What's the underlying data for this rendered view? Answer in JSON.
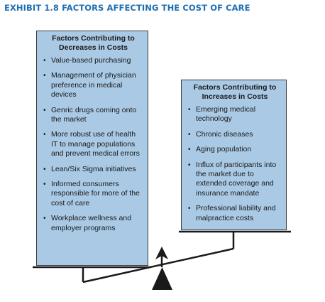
{
  "exhibit": {
    "title": "EXHIBIT 1.8  FACTORS AFFECTING THE COST OF CARE"
  },
  "decreases": {
    "heading": "Factors Contributing to Decreases in Costs",
    "items": [
      "Value-based purchasing",
      "Management of physician preference in medical devices",
      "Genric drugs coming onto the market",
      "More robust use of health IT to manage populations and prevent medical errors",
      "Lean/Six Sigma initiatives",
      "Informed consumers responsible for more of the cost of care",
      "Workplace wellness and employer programs"
    ]
  },
  "increases": {
    "heading": "Factors Contributing to Increases  in Costs",
    "items": [
      "Emerging medical technology",
      "Chronic diseases",
      "Aging population",
      "Influx of participants into the market due to extended coverage and insurance mandate",
      "Professional liability and malpractice costs"
    ]
  },
  "bullet_glyph": "•",
  "colors": {
    "title": "#1f6fb4",
    "box_fill": "#a9c9e5",
    "scale": "#1a1a1a"
  }
}
